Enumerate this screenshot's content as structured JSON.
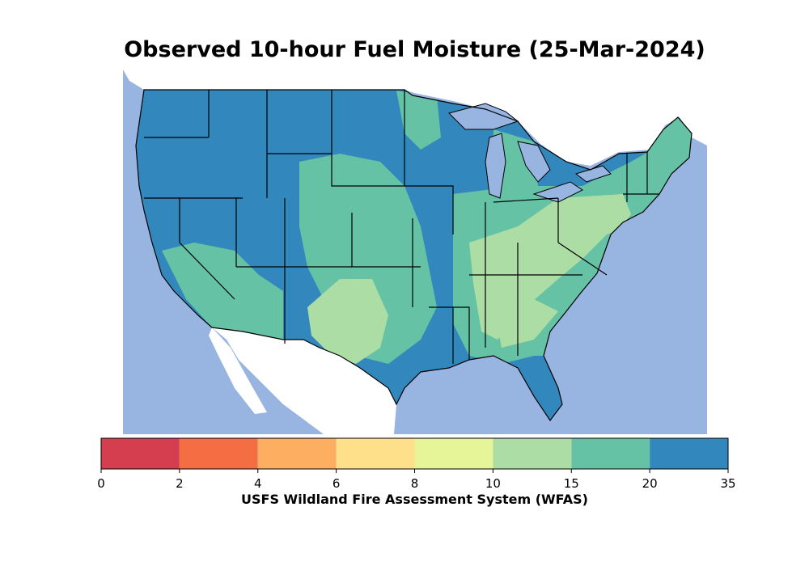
{
  "title": "Observed 10-hour Fuel Moisture (25-Mar-2024)",
  "colors": {
    "water": "#98b4e0",
    "land_outside": "#ffffff",
    "border": "#000000"
  },
  "legend": {
    "label": "USFS Wildland Fire Assessment System (WFAS)",
    "bins": [
      {
        "from": 0,
        "to": 2,
        "color": "#d53e4f"
      },
      {
        "from": 2,
        "to": 4,
        "color": "#f46d43"
      },
      {
        "from": 4,
        "to": 6,
        "color": "#fdae61"
      },
      {
        "from": 6,
        "to": 8,
        "color": "#fee08b"
      },
      {
        "from": 8,
        "to": 10,
        "color": "#e6f598"
      },
      {
        "from": 10,
        "to": 15,
        "color": "#abdda4"
      },
      {
        "from": 15,
        "to": 20,
        "color": "#66c2a5"
      },
      {
        "from": 20,
        "to": 35,
        "color": "#3288bd"
      }
    ],
    "ticks": [
      "0",
      "2",
      "4",
      "6",
      "8",
      "10",
      "15",
      "20",
      "35"
    ]
  }
}
